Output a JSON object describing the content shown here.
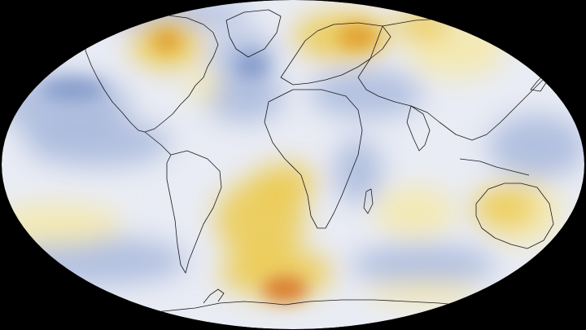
{
  "map": {
    "projection": "robinson",
    "background_color": "#000000",
    "ocean_base_color": "#e9ecf4",
    "coastline_color": "#1a1a1a",
    "palette": {
      "cool_strong": "#7f97c8",
      "cool": "#a9b8dc",
      "neutral": "#eef0f6",
      "warm_light": "#f6e9a8",
      "warm": "#ecc94a",
      "hot": "#e0a030",
      "hottest": "#d97a2a"
    },
    "anomaly_regions": [
      {
        "region": "northern-canada",
        "anomaly": "warm"
      },
      {
        "region": "greenland",
        "anomaly": "cool"
      },
      {
        "region": "north-atlantic",
        "anomaly": "cool"
      },
      {
        "region": "scandinavia",
        "anomaly": "hot"
      },
      {
        "region": "western-russia",
        "anomaly": "warm"
      },
      {
        "region": "siberia",
        "anomaly": "warm_light"
      },
      {
        "region": "north-pacific",
        "anomaly": "cool"
      },
      {
        "region": "central-pacific",
        "anomaly": "warm_light"
      },
      {
        "region": "south-pacific",
        "anomaly": "cool"
      },
      {
        "region": "south-atlantic",
        "anomaly": "warm"
      },
      {
        "region": "weddell-sea",
        "anomaly": "hottest"
      },
      {
        "region": "indian-ocean",
        "anomaly": "warm_light"
      },
      {
        "region": "australia",
        "anomaly": "warm"
      },
      {
        "region": "middle-east",
        "anomaly": "cool"
      },
      {
        "region": "southern-ocean",
        "anomaly": "warm_light"
      }
    ]
  }
}
